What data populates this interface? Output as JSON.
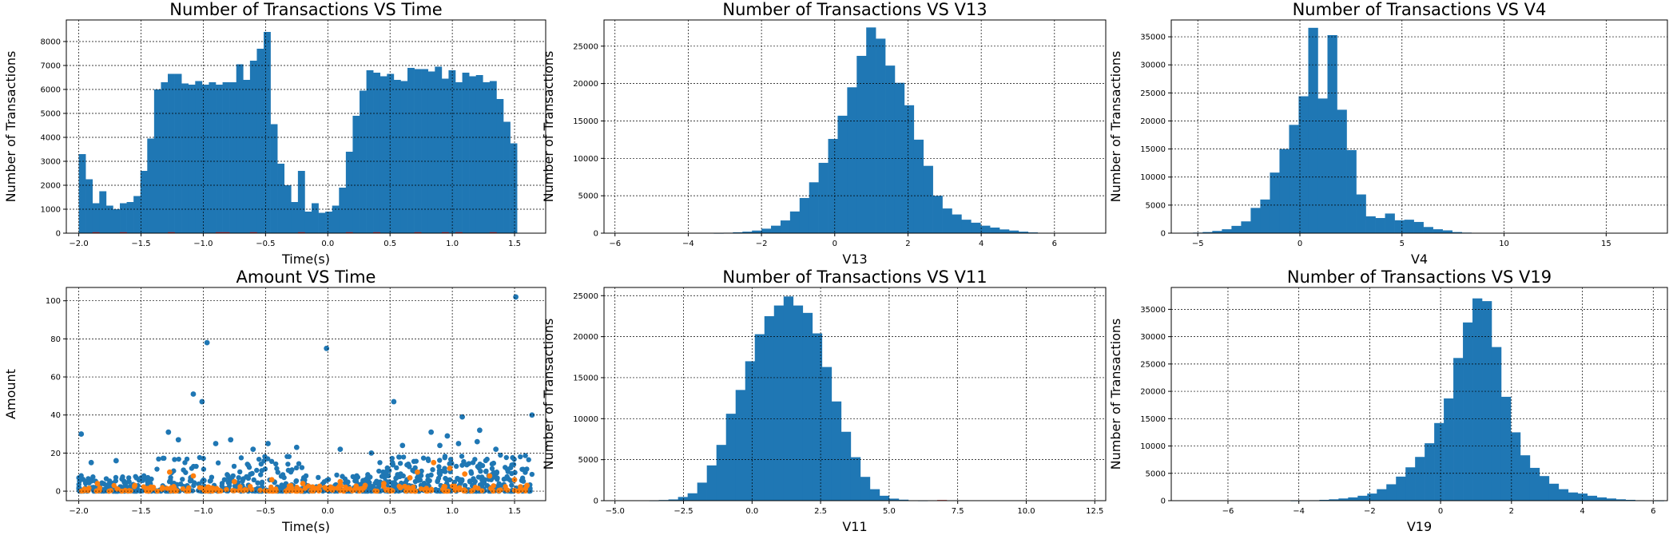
{
  "chart_data": [
    {
      "type": "bar",
      "title": "Number of Transactions VS Time",
      "xlabel": "Time(s)",
      "ylabel": "Number of Transactions",
      "xlim": [
        -2.1,
        1.75
      ],
      "ylim": [
        0,
        8900
      ],
      "xticks": [
        -2.0,
        -1.5,
        -1.0,
        -0.5,
        0.0,
        0.5,
        1.0,
        1.5
      ],
      "xtick_labels": [
        "−2.0",
        "−1.5",
        "−1.0",
        "−0.5",
        "0.0",
        "0.5",
        "1.0",
        "1.5"
      ],
      "yticks": [
        0,
        1000,
        2000,
        3000,
        4000,
        5000,
        6000,
        7000,
        8000
      ],
      "ytick_labels": [
        "0",
        "1000",
        "2000",
        "3000",
        "4000",
        "5000",
        "6000",
        "7000",
        "8000"
      ],
      "grid": true,
      "bin_start": -2.0,
      "bin_width": 0.055,
      "series": [
        {
          "color": "#1f77b4",
          "values": [
            3300,
            2250,
            1250,
            1750,
            1150,
            1000,
            1250,
            1300,
            1550,
            2600,
            3950,
            6000,
            6300,
            6650,
            6650,
            6250,
            6200,
            6350,
            6200,
            6300,
            6200,
            6300,
            6300,
            7050,
            6400,
            7200,
            7700,
            8400,
            4550,
            2900,
            2000,
            1300,
            2600,
            900,
            1250,
            850,
            900,
            1150,
            1900,
            3400,
            4900,
            5950,
            6800,
            6700,
            6550,
            6650,
            6400,
            6350,
            6900,
            6850,
            6850,
            6750,
            6950,
            6450,
            6800,
            6300,
            6700,
            6550,
            6600,
            6300,
            6350,
            5600,
            4650,
            3750
          ]
        },
        {
          "color": "#d62728",
          "values": [
            0,
            0,
            40,
            0,
            0,
            0,
            40,
            0,
            0,
            0,
            0,
            0,
            0,
            40,
            0,
            0,
            0,
            0,
            0,
            0,
            40,
            40,
            0,
            0,
            0,
            40,
            0,
            0,
            0,
            0,
            0,
            0,
            40,
            0,
            0,
            0,
            0,
            0,
            0,
            40,
            0,
            0,
            0,
            40,
            0,
            0,
            0,
            0,
            0,
            40,
            0,
            0,
            0,
            40,
            0,
            40,
            0,
            0,
            0,
            0,
            40,
            0,
            0,
            0
          ]
        }
      ]
    },
    {
      "type": "bar",
      "title": "Number of Transactions VS V13",
      "xlabel": "V13",
      "ylabel": "Number of Transactions",
      "xlim": [
        -6.3,
        7.4
      ],
      "ylim": [
        0,
        28500
      ],
      "xticks": [
        -6,
        -4,
        -2,
        0,
        2,
        4,
        6
      ],
      "xtick_labels": [
        "−6",
        "−4",
        "−2",
        "0",
        "2",
        "4",
        "6"
      ],
      "yticks": [
        0,
        5000,
        10000,
        15000,
        20000,
        25000
      ],
      "ytick_labels": [
        "0",
        "5000",
        "10000",
        "15000",
        "20000",
        "25000"
      ],
      "grid": true,
      "bin_start": -5.9,
      "bin_width": 0.26,
      "series": [
        {
          "color": "#1f77b4",
          "values": [
            0,
            0,
            0,
            0,
            0,
            0,
            0,
            0,
            0,
            0,
            20,
            60,
            120,
            200,
            350,
            600,
            1000,
            1700,
            2900,
            4700,
            6800,
            9400,
            12600,
            15700,
            19500,
            23700,
            27500,
            26000,
            22400,
            20100,
            17100,
            12500,
            9000,
            5000,
            3300,
            2500,
            1800,
            1400,
            1000,
            750,
            500,
            350,
            200,
            100,
            0,
            0,
            0,
            0,
            0,
            0
          ]
        }
      ]
    },
    {
      "type": "bar",
      "title": "Number of Transactions VS V4",
      "xlabel": "V4",
      "ylabel": "Number of Transactions",
      "xlim": [
        -6.3,
        18.0
      ],
      "ylim": [
        0,
        38000
      ],
      "xticks": [
        -5,
        0,
        5,
        10,
        15
      ],
      "xtick_labels": [
        "−5",
        "0",
        "5",
        "10",
        "15"
      ],
      "yticks": [
        0,
        5000,
        10000,
        15000,
        20000,
        25000,
        30000,
        35000
      ],
      "ytick_labels": [
        "0",
        "5000",
        "10000",
        "15000",
        "20000",
        "25000",
        "30000",
        "35000"
      ],
      "grid": true,
      "bin_start": -5.7,
      "bin_width": 0.47,
      "series": [
        {
          "color": "#1f77b4",
          "values": [
            0,
            100,
            200,
            400,
            700,
            1300,
            2100,
            4500,
            6000,
            10800,
            15000,
            19300,
            24400,
            36600,
            24000,
            35300,
            22000,
            14800,
            6900,
            3000,
            2700,
            3500,
            2300,
            2400,
            2000,
            1100,
            700,
            500,
            200,
            100,
            50,
            0,
            0,
            0,
            0,
            0,
            0,
            0,
            0,
            0,
            0,
            0,
            0,
            0,
            0,
            0,
            0,
            0,
            0,
            0,
            0
          ]
        }
      ]
    },
    {
      "type": "scatter",
      "title": "Amount VS Time",
      "xlabel": "Time(s)",
      "ylabel": "Amount",
      "xlim": [
        -2.1,
        1.75
      ],
      "ylim": [
        -5,
        107
      ],
      "xticks": [
        -2.0,
        -1.5,
        -1.0,
        -0.5,
        0.0,
        0.5,
        1.0,
        1.5
      ],
      "xtick_labels": [
        "−2.0",
        "−1.5",
        "−1.0",
        "−0.5",
        "0.0",
        "0.5",
        "1.0",
        "1.5"
      ],
      "yticks": [
        0,
        20,
        40,
        60,
        80,
        100
      ],
      "ytick_labels": [
        "0",
        "20",
        "40",
        "60",
        "80",
        "100"
      ],
      "grid": true,
      "series": [
        {
          "color": "#1f77b4",
          "points": [
            [
              -1.98,
              30
            ],
            [
              1.51,
              102
            ],
            [
              -0.97,
              78
            ],
            [
              -0.01,
              75
            ],
            [
              1.64,
              40
            ],
            [
              0.53,
              47
            ],
            [
              -1.08,
              51
            ],
            [
              -1.01,
              47
            ],
            [
              1.08,
              39
            ],
            [
              0.83,
              31
            ],
            [
              -1.28,
              31
            ],
            [
              -0.78,
              27
            ],
            [
              -1.2,
              27
            ],
            [
              1.22,
              32
            ],
            [
              1.2,
              26
            ],
            [
              0.96,
              29
            ],
            [
              0.9,
              24
            ],
            [
              0.6,
              24
            ],
            [
              -0.48,
              25
            ],
            [
              -0.25,
              23
            ],
            [
              0.1,
              22
            ],
            [
              -1.9,
              15
            ],
            [
              -1.7,
              16
            ],
            [
              -0.6,
              22
            ],
            [
              0.35,
              20
            ],
            [
              1.35,
              22
            ],
            [
              1.05,
              25
            ],
            [
              -0.9,
              25
            ]
          ]
        },
        {
          "color": "#ff7f0e",
          "points": [
            [
              0.85,
              15
            ],
            [
              0.72,
              10
            ],
            [
              0.98,
              12
            ],
            [
              1.1,
              9
            ],
            [
              -1.27,
              10
            ],
            [
              -1.08,
              8
            ],
            [
              0.66,
              7
            ],
            [
              -1.85,
              4
            ],
            [
              0.1,
              5
            ],
            [
              -0.45,
              6
            ],
            [
              1.3,
              8
            ],
            [
              -0.75,
              5
            ],
            [
              0.45,
              4
            ],
            [
              1.5,
              6
            ],
            [
              -1.55,
              3
            ],
            [
              0.3,
              3
            ],
            [
              -0.2,
              4
            ],
            [
              1.6,
              3
            ]
          ]
        }
      ]
    },
    {
      "type": "bar",
      "title": "Number of Transactions VS V11",
      "xlabel": "V11",
      "ylabel": "Number of Transactions",
      "xlim": [
        -5.4,
        12.9
      ],
      "ylim": [
        0,
        26000
      ],
      "xticks": [
        -5.0,
        -2.5,
        0.0,
        2.5,
        5.0,
        7.5,
        10.0,
        12.5
      ],
      "xtick_labels": [
        "−5.0",
        "−2.5",
        "0.0",
        "2.5",
        "5.0",
        "7.5",
        "10.0",
        "12.5"
      ],
      "yticks": [
        0,
        5000,
        10000,
        15000,
        20000,
        25000
      ],
      "ytick_labels": [
        "0",
        "5000",
        "10000",
        "15000",
        "20000",
        "25000"
      ],
      "grid": true,
      "bin_start": -4.8,
      "bin_width": 0.35,
      "series": [
        {
          "color": "#1f77b4",
          "values": [
            0,
            0,
            0,
            20,
            80,
            150,
            450,
            900,
            2200,
            4300,
            6800,
            10600,
            13500,
            17000,
            20300,
            22500,
            23800,
            24900,
            23800,
            22900,
            20400,
            16300,
            12100,
            8400,
            5300,
            2900,
            1400,
            600,
            250,
            120,
            50,
            20,
            0,
            0,
            0,
            0,
            0,
            0,
            0,
            0,
            0,
            0,
            0,
            0,
            0,
            0,
            0,
            0,
            0,
            0,
            0,
            0
          ]
        },
        {
          "color": "#d62728",
          "values": [
            0,
            0,
            0,
            0,
            0,
            0,
            0,
            0,
            0,
            0,
            0,
            0,
            0,
            0,
            0,
            0,
            0,
            0,
            0,
            0,
            0,
            0,
            0,
            0,
            0,
            0,
            0,
            0,
            0,
            0,
            0,
            0,
            0,
            80,
            0,
            0,
            0,
            0,
            0,
            0,
            0,
            0,
            0,
            0,
            0,
            0,
            0,
            0,
            0,
            0,
            0,
            0
          ]
        }
      ]
    },
    {
      "type": "bar",
      "title": "Number of Transactions VS V19",
      "xlabel": "V19",
      "ylabel": "Number of Transactions",
      "xlim": [
        -7.6,
        6.4
      ],
      "ylim": [
        0,
        39000
      ],
      "xticks": [
        -6,
        -4,
        -2,
        0,
        2,
        4,
        6
      ],
      "xtick_labels": [
        "−6",
        "−4",
        "−2",
        "0",
        "2",
        "4",
        "6"
      ],
      "yticks": [
        0,
        5000,
        10000,
        15000,
        20000,
        25000,
        30000,
        35000
      ],
      "ytick_labels": [
        "0",
        "5000",
        "10000",
        "15000",
        "20000",
        "25000",
        "30000",
        "35000"
      ],
      "grid": true,
      "bin_start": -7.2,
      "bin_width": 0.27,
      "series": [
        {
          "color": "#1f77b4",
          "values": [
            0,
            0,
            0,
            0,
            0,
            0,
            0,
            0,
            0,
            0,
            0,
            20,
            40,
            80,
            150,
            250,
            400,
            600,
            900,
            1300,
            2100,
            3000,
            4400,
            6100,
            8000,
            10500,
            14200,
            18700,
            26100,
            32600,
            37000,
            36500,
            28100,
            19000,
            12500,
            8300,
            6000,
            4500,
            3100,
            2100,
            1500,
            1300,
            900,
            600,
            400,
            250,
            150,
            80,
            40,
            20,
            0,
            0
          ]
        }
      ]
    }
  ]
}
